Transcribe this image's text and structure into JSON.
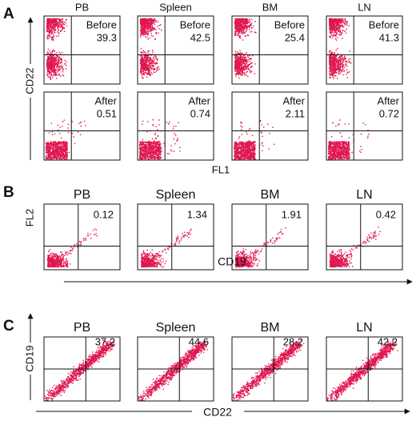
{
  "panels": [
    {
      "label": "A",
      "columns": [
        "PB",
        "Spleen",
        "BM",
        "LN"
      ],
      "rows": [
        {
          "title": "Before",
          "values": [
            39.3,
            42.5,
            25.4,
            41.3
          ]
        },
        {
          "title": "After",
          "values": [
            0.51,
            0.74,
            2.11,
            0.72
          ]
        }
      ],
      "y_axis": "CD22",
      "x_axis": "FL1"
    },
    {
      "label": "B",
      "columns": [
        "PB",
        "Spleen",
        "BM",
        "LN"
      ],
      "values": [
        0.12,
        1.34,
        1.91,
        0.42
      ],
      "y_axis": "FL2",
      "x_axis": "CD19"
    },
    {
      "label": "C",
      "columns": [
        "PB",
        "Spleen",
        "BM",
        "LN"
      ],
      "values": [
        37.2,
        44.6,
        28.2,
        42.2
      ],
      "y_axis": "CD19",
      "x_axis": "CD22"
    }
  ]
}
